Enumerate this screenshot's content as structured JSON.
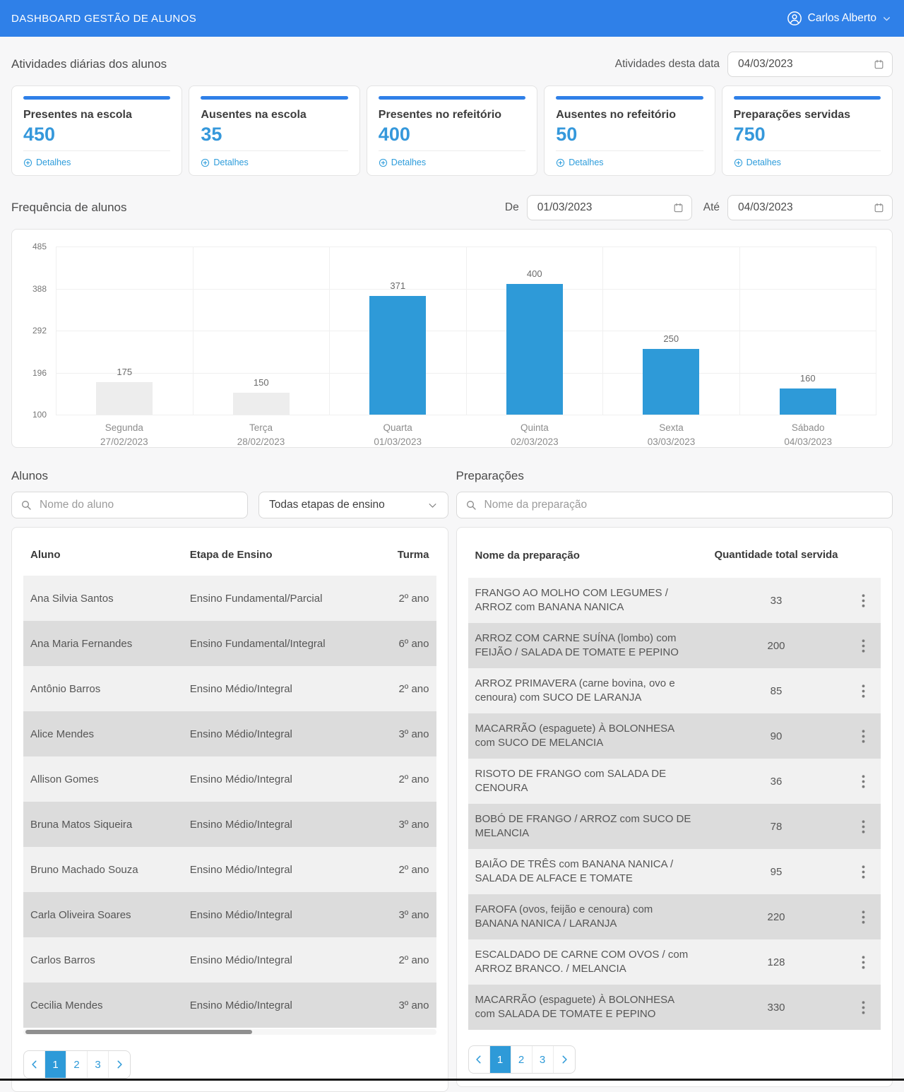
{
  "header": {
    "title": "DASHBOARD GESTÃO DE ALUNOS",
    "user_name": "Carlos Alberto"
  },
  "colors": {
    "header_blue": "#2f80e8",
    "card_accent_blue": "#2f80e8",
    "stat_number_blue": "#3598db",
    "link_blue": "#2d9cdb",
    "bar_blue": "#2e9ad8",
    "bar_gray": "#ededed",
    "pagination_active_blue": "#2e9ad8",
    "row_light": "#f1f1f1",
    "row_dark": "#dcdcdc"
  },
  "icons": {
    "user": "user-circle",
    "user_chevron": "chevron-down",
    "date": "calendar",
    "details": "circle-plus",
    "search": "magnifier",
    "filter_chevron": "chevron-down",
    "row_menu": "vertical-ellipsis",
    "pager_prev": "chevron-left",
    "pager_next": "chevron-right"
  },
  "activities": {
    "section_title": "Atividades diárias dos alunos",
    "date_label": "Atividades desta data",
    "date_value": "04/03/2023",
    "details_label": "Detalhes",
    "cards": [
      {
        "title": "Presentes na escola",
        "value": "450"
      },
      {
        "title": "Ausentes na escola",
        "value": "35"
      },
      {
        "title": "Presentes no refeitório",
        "value": "400"
      },
      {
        "title": "Ausentes no refeitório",
        "value": "50"
      },
      {
        "title": "Preparações servidas",
        "value": "750"
      }
    ]
  },
  "frequency": {
    "section_title": "Frequência de alunos",
    "from_label": "De",
    "from_value": "01/03/2023",
    "to_label": "Até",
    "to_value": "04/03/2023"
  },
  "chart_data": {
    "type": "bar",
    "title": "Frequência de alunos",
    "categories": [
      {
        "day": "Segunda",
        "date": "27/02/2023"
      },
      {
        "day": "Terça",
        "date": "28/02/2023"
      },
      {
        "day": "Quarta",
        "date": "01/03/2023"
      },
      {
        "day": "Quinta",
        "date": "02/03/2023"
      },
      {
        "day": "Sexta",
        "date": "03/03/2023"
      },
      {
        "day": "Sábado",
        "date": "04/03/2023"
      }
    ],
    "values": [
      175,
      150,
      371,
      400,
      250,
      160
    ],
    "bar_colors": [
      "#ededed",
      "#ededed",
      "#2e9ad8",
      "#2e9ad8",
      "#2e9ad8",
      "#2e9ad8"
    ],
    "value_labels": true,
    "yticks": [
      485,
      388,
      292,
      196,
      100
    ],
    "ylim": [
      100,
      485
    ],
    "grid": true,
    "legend": false
  },
  "students": {
    "section_title": "Alunos",
    "search_placeholder": "Nome do aluno",
    "filter_value": "Todas etapas de ensino",
    "columns": [
      "Aluno",
      "Etapa de Ensino",
      "Turma"
    ],
    "rows": [
      {
        "name": "Ana Silvia Santos",
        "etapa": "Ensino Fundamental/Parcial",
        "turma": "2º ano"
      },
      {
        "name": "Ana Maria Fernandes",
        "etapa": "Ensino Fundamental/Integral",
        "turma": "6º ano"
      },
      {
        "name": "Antônio Barros",
        "etapa": "Ensino Médio/Integral",
        "turma": "2º ano"
      },
      {
        "name": "Alice Mendes",
        "etapa": "Ensino Médio/Integral",
        "turma": "3º ano"
      },
      {
        "name": "Allison Gomes",
        "etapa": "Ensino Médio/Integral",
        "turma": "2º ano"
      },
      {
        "name": "Bruna Matos Siqueira",
        "etapa": "Ensino Médio/Integral",
        "turma": "3º ano"
      },
      {
        "name": "Bruno Machado Souza",
        "etapa": "Ensino Médio/Integral",
        "turma": "2º ano"
      },
      {
        "name": "Carla Oliveira Soares",
        "etapa": "Ensino Médio/Integral",
        "turma": "3º ano"
      },
      {
        "name": "Carlos Barros",
        "etapa": "Ensino Médio/Integral",
        "turma": "2º ano"
      },
      {
        "name": "Cecilia Mendes",
        "etapa": "Ensino Médio/Integral",
        "turma": "3º ano"
      }
    ],
    "pagination": {
      "pages": [
        "1",
        "2",
        "3"
      ],
      "active": "1"
    }
  },
  "preparations": {
    "section_title": "Preparações",
    "search_placeholder": "Nome da preparação",
    "columns": [
      "Nome da preparação",
      "Quantidade total servida"
    ],
    "rows": [
      {
        "name": "FRANGO AO MOLHO COM LEGUMES / ARROZ com BANANA NANICA",
        "qty": "33"
      },
      {
        "name": "ARROZ COM CARNE SUÍNA (lombo) com FEIJÃO / SALADA DE TOMATE E PEPINO",
        "qty": "200"
      },
      {
        "name": "ARROZ PRIMAVERA (carne bovina, ovo e cenoura) com SUCO DE LARANJA",
        "qty": "85"
      },
      {
        "name": "MACARRÃO (espaguete) À BOLONHESA com SUCO DE MELANCIA",
        "qty": "90"
      },
      {
        "name": "RISOTO DE FRANGO com SALADA DE CENOURA",
        "qty": "36"
      },
      {
        "name": "BOBÓ DE FRANGO / ARROZ com SUCO DE MELANCIA",
        "qty": "78"
      },
      {
        "name": "BAIÃO DE TRÊS com BANANA NANICA / SALADA DE ALFACE E TOMATE",
        "qty": "95"
      },
      {
        "name": "FAROFA (ovos, feijão e cenoura) com BANANA NANICA / LARANJA",
        "qty": "220"
      },
      {
        "name": "ESCALDADO DE CARNE COM OVOS / com ARROZ BRANCO. / MELANCIA",
        "qty": "128"
      },
      {
        "name": "MACARRÃO (espaguete) À BOLONHESA com SALADA DE TOMATE E PEPINO",
        "qty": "330"
      }
    ],
    "pagination": {
      "pages": [
        "1",
        "2",
        "3"
      ],
      "active": "1"
    }
  }
}
